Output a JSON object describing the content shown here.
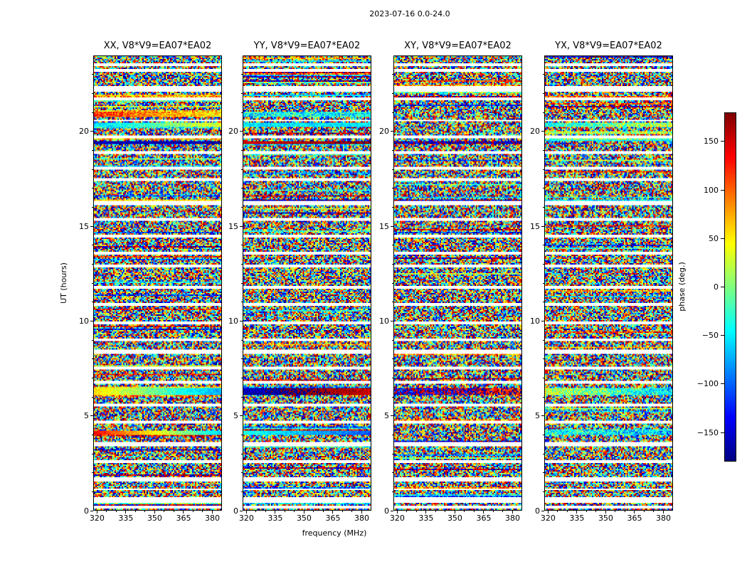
{
  "chart_data": {
    "type": "heatmap",
    "title": "2023-07-16 0.0-24.0",
    "xlabel": "frequency (MHz)",
    "ylabel": "UT (hours)",
    "value_label": "phase (deg.)",
    "colormap": "jet",
    "value_range_deg": [
      -180,
      180
    ],
    "x_range_mhz": [
      318,
      385
    ],
    "x_ticks": [
      320,
      335,
      350,
      365,
      380
    ],
    "x_minor_step": 5,
    "y_range_hours": [
      0,
      24
    ],
    "y_ticks": [
      0,
      5,
      10,
      15,
      20
    ],
    "y_minor_step": 1,
    "colorbar_ticks": [
      150,
      100,
      50,
      0,
      -50,
      -100,
      -150
    ],
    "panels": [
      {
        "pol": "XX",
        "title": "XX, V8*V9=EA07*EA02"
      },
      {
        "pol": "YY",
        "title": "YY, V8*V9=EA07*EA02"
      },
      {
        "pol": "XY",
        "title": "XY, V8*V9=EA07*EA02"
      },
      {
        "pol": "YX",
        "title": "YX, V8*V9=EA07*EA02"
      }
    ],
    "content_description": "Random (noise-like) visibility phases over 0-24 UT hours and 320-385 MHz, with white horizontal gaps between scans and a few frequency-coherent phase bands.",
    "gaps_ut_hours": [
      [
        23.5,
        23.56
      ],
      [
        23.22,
        23.3
      ],
      [
        22.2,
        22.38
      ],
      [
        21.74,
        21.82
      ],
      [
        20.55,
        20.62
      ],
      [
        19.7,
        19.77
      ],
      [
        18.85,
        18.92
      ],
      [
        18.05,
        18.13
      ],
      [
        17.45,
        17.52
      ],
      [
        16.2,
        16.32
      ],
      [
        15.3,
        15.38
      ],
      [
        14.45,
        14.52
      ],
      [
        13.55,
        13.62
      ],
      [
        12.85,
        12.92
      ],
      [
        11.75,
        11.82
      ],
      [
        10.8,
        10.88
      ],
      [
        9.85,
        9.92
      ],
      [
        8.95,
        9.02
      ],
      [
        8.28,
        8.42
      ],
      [
        7.45,
        7.52
      ],
      [
        6.7,
        6.77
      ],
      [
        5.5,
        5.58
      ],
      [
        4.6,
        4.67
      ],
      [
        3.45,
        3.53
      ],
      [
        2.5,
        2.58
      ],
      [
        1.55,
        1.7
      ],
      [
        1.05,
        1.12
      ],
      [
        0.45,
        0.62
      ],
      [
        0.12,
        0.18
      ]
    ],
    "coherent_bands": [
      {
        "ut": [
          6.05,
          6.45
        ],
        "XX": [
          55,
          -75,
          14
        ],
        "YY": [
          -160,
          -205,
          14
        ],
        "XY": [
          -150,
          -215,
          70
        ],
        "YX": [
          25,
          -55,
          45
        ]
      },
      {
        "ut": [
          3.95,
          4.2
        ],
        "XX": [
          135,
          -55,
          12
        ],
        "YY": [
          -35,
          -105,
          14
        ],
        "XY": null,
        "YX": [
          -25,
          -70,
          55
        ]
      },
      {
        "ut": [
          19.33,
          19.52
        ],
        "XX": [
          -158,
          -168,
          14
        ],
        "YY": [
          152,
          176,
          12
        ],
        "XY": [
          -160,
          -172,
          45
        ],
        "YX": null
      },
      {
        "ut": [
          19.52,
          19.6
        ],
        "XX": null,
        "YY": null,
        "XY": null,
        "YX": [
          -45,
          -45,
          30
        ]
      },
      {
        "ut": [
          20.25,
          20.45
        ],
        "XX": [
          -60,
          35,
          25
        ],
        "YY": [
          -52,
          -52,
          22
        ],
        "XY": null,
        "YX": [
          -40,
          25,
          45
        ]
      },
      {
        "ut": [
          16.32,
          16.44
        ],
        "XX": [
          55,
          65,
          30
        ],
        "YY": [
          -160,
          -160,
          28
        ],
        "XY": [
          -155,
          -155,
          55
        ],
        "YX": [
          -50,
          -50,
          40
        ]
      },
      {
        "ut": [
          20.8,
          21.05
        ],
        "XX": [
          115,
          55,
          35
        ],
        "YY": [
          -45,
          -45,
          55
        ],
        "XY": null,
        "YX": null
      },
      {
        "ut": [
          21.88,
          22.0
        ],
        "XX": [
          75,
          75,
          40
        ],
        "YY": [
          -60,
          -60,
          25
        ],
        "XY": null,
        "YX": null
      }
    ]
  }
}
